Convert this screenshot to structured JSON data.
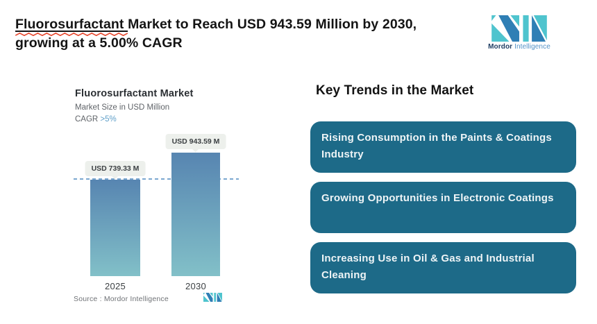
{
  "header": {
    "title_highlight": "Fluorosurfactant",
    "title_rest_line1": " Market to Reach USD 943.59 Million by 2030,",
    "title_line2": "growing at a 5.00% CAGR"
  },
  "brand": {
    "name_bold": "Mordor",
    "name_light": "Intelligence"
  },
  "chart": {
    "title": "Fluorosurfactant Market",
    "subtitle": "Market Size in USD Million",
    "cagr_prefix": "CAGR ",
    "cagr_value": ">5%",
    "source": "Source : Mordor Intelligence"
  },
  "chart_data": {
    "type": "bar",
    "title": "Fluorosurfactant Market",
    "ylabel": "Market Size in USD Million",
    "categories": [
      "2025",
      "2030"
    ],
    "values": [
      739.33,
      943.59
    ],
    "value_labels": [
      "USD 739.33 M",
      "USD 943.59 M"
    ],
    "cagr_percent": 5.0,
    "ylim": [
      0,
      1000
    ],
    "grid": false,
    "legend": false,
    "reference_line_value": 739.33
  },
  "trends": {
    "heading": "Key Trends in the Market",
    "items": [
      "Rising Consumption in the Paints & Coatings Industry",
      "Growing Opportunities in Electronic Coatings",
      "Increasing Use in Oil & Gas and Industrial Cleaning"
    ]
  },
  "colors": {
    "trend_box": "#1d6a88",
    "bar_top": "#5785b1",
    "bar_bottom": "#82c0c8",
    "dashed_line": "#7aa7d0",
    "cagr_accent": "#5f9fc9",
    "accent_teal": "#4fc4ce",
    "accent_blue": "#2f7fb5",
    "squiggle_red": "#e8492f"
  }
}
